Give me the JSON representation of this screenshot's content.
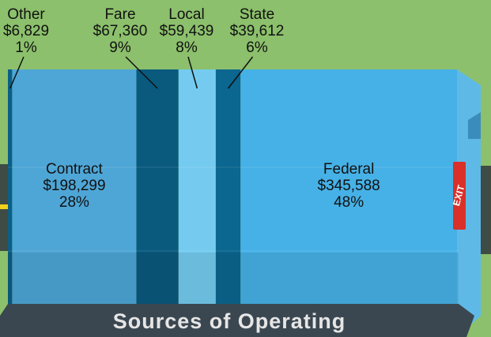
{
  "chart_data": {
    "type": "proportion_box",
    "title": "Sources of Operating",
    "sign": "EXIT",
    "categories": [
      "Other",
      "Contract",
      "Fare",
      "Local",
      "State",
      "Federal"
    ],
    "values": [
      6829,
      198299,
      67360,
      59439,
      39612,
      345588
    ],
    "value_labels": [
      "$6,829",
      "$198,299",
      "$67,360",
      "$59,439",
      "$39,612",
      "$345,588"
    ],
    "share_labels": [
      "1%",
      "28%",
      "9%",
      "8%",
      "6%",
      "48%"
    ],
    "colors": [
      "#0b5f86",
      "#4ea6d6",
      "#0a5a7e",
      "#74cbef",
      "#0b6690",
      "#46b1e6"
    ]
  }
}
